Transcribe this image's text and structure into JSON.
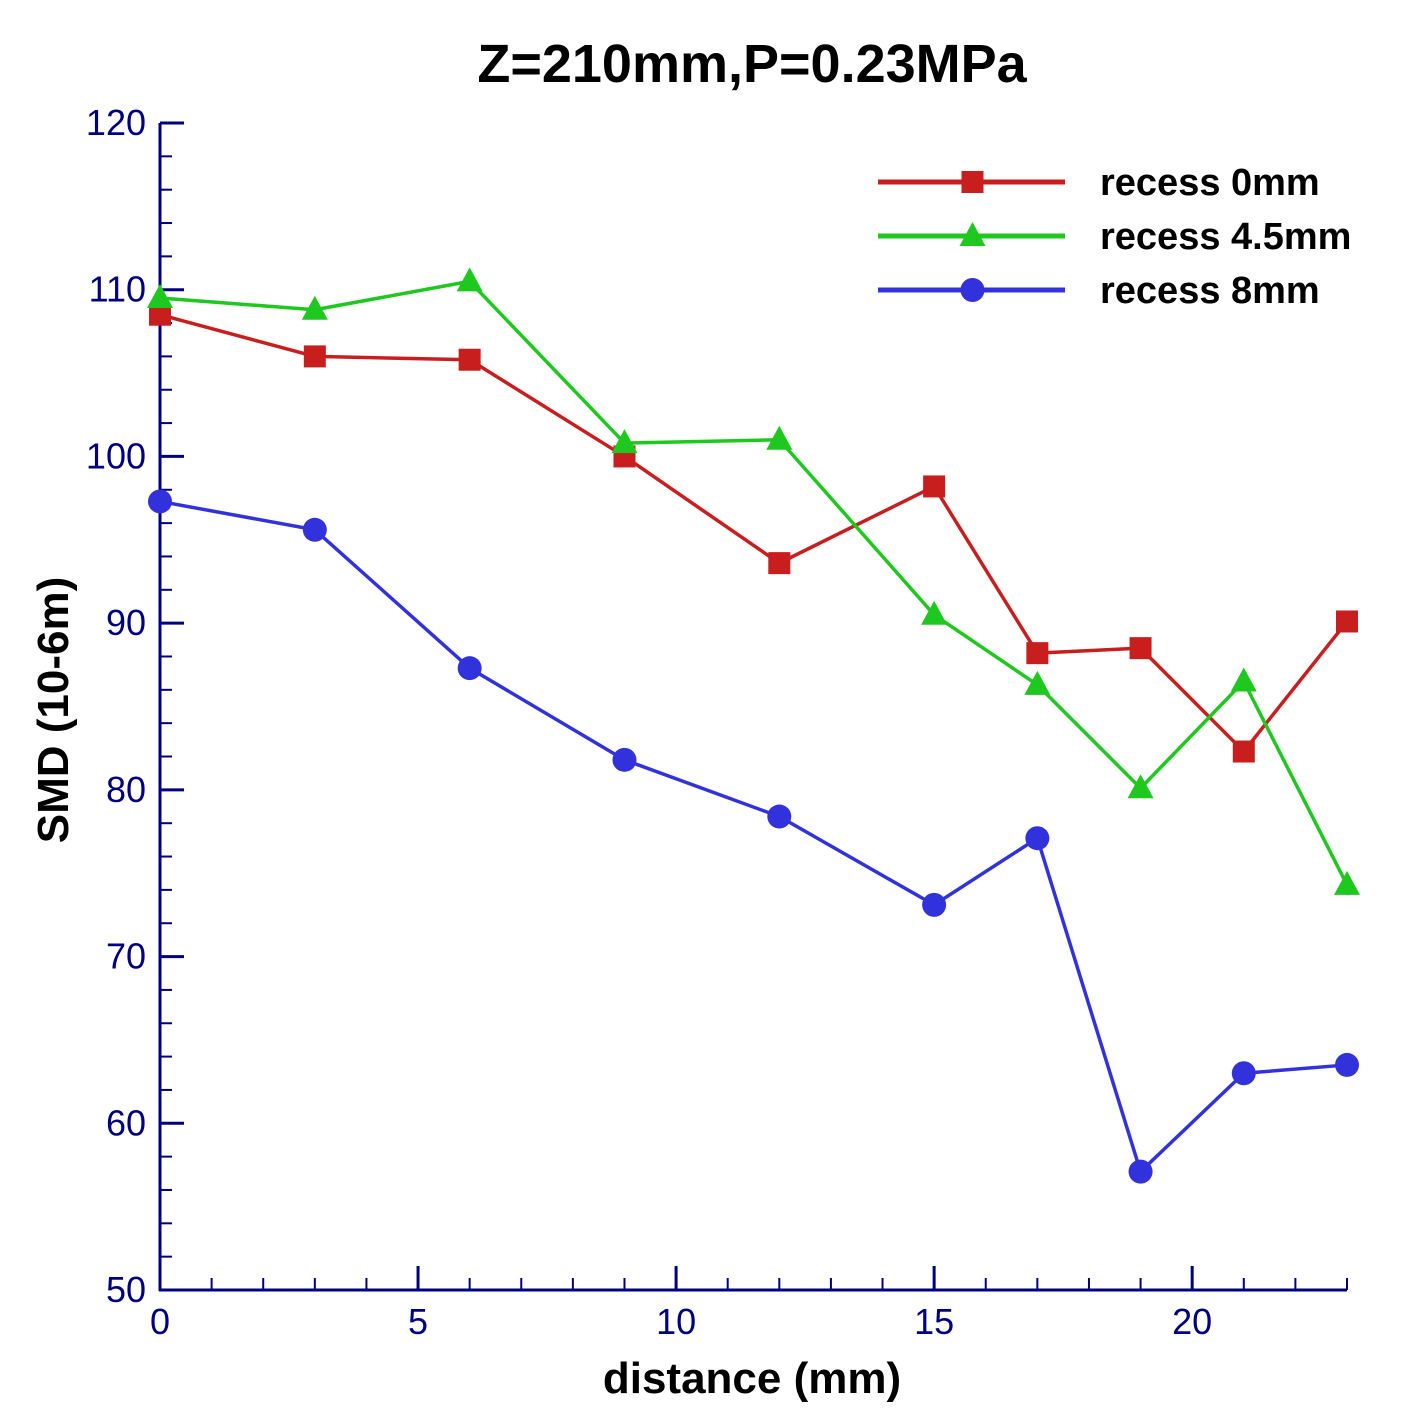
{
  "chart_data": {
    "type": "line",
    "title": "Z=210mm,P=0.23MPa",
    "xlabel": "distance (mm)",
    "ylabel": "SMD (10-6m)",
    "xlim": [
      0,
      23
    ],
    "ylim": [
      50,
      120
    ],
    "x_ticks": [
      0,
      5,
      10,
      15,
      20
    ],
    "x_tick_labels": [
      "0",
      "5",
      "10",
      "15",
      "20"
    ],
    "y_ticks": [
      50,
      60,
      70,
      80,
      90,
      100,
      110,
      120
    ],
    "y_tick_labels": [
      "50",
      "60",
      "70",
      "80",
      "90",
      "100",
      "110",
      "120"
    ],
    "x_minor_step": 1,
    "y_minor_step": 2,
    "grid": false,
    "legend_position": "top-right",
    "series": [
      {
        "name": "recess 0mm",
        "color": "#c81e1e",
        "marker": "square",
        "x": [
          0,
          3,
          6,
          9,
          12,
          15,
          17,
          19,
          21,
          23
        ],
        "y": [
          108.5,
          106,
          105.8,
          100,
          93.6,
          98.2,
          88.2,
          88.5,
          82.3,
          90.1
        ]
      },
      {
        "name": "recess 4.5mm",
        "color": "#1ec81e",
        "marker": "triangle",
        "x": [
          0,
          3,
          6,
          9,
          12,
          15,
          17,
          19,
          21,
          23
        ],
        "y": [
          109.5,
          108.8,
          110.5,
          100.8,
          101,
          90.5,
          86.3,
          80.1,
          86.5,
          74.3
        ]
      },
      {
        "name": "recess 8mm",
        "color": "#3232dc",
        "marker": "circle",
        "x": [
          0,
          3,
          6,
          9,
          12,
          15,
          17,
          19,
          21,
          23
        ],
        "y": [
          97.3,
          95.6,
          87.3,
          81.8,
          78.4,
          73.1,
          77.1,
          57.1,
          63,
          63.5
        ]
      }
    ],
    "colors": {
      "axis": "#000080",
      "tick_label": "#000080",
      "text": "#000000"
    }
  }
}
